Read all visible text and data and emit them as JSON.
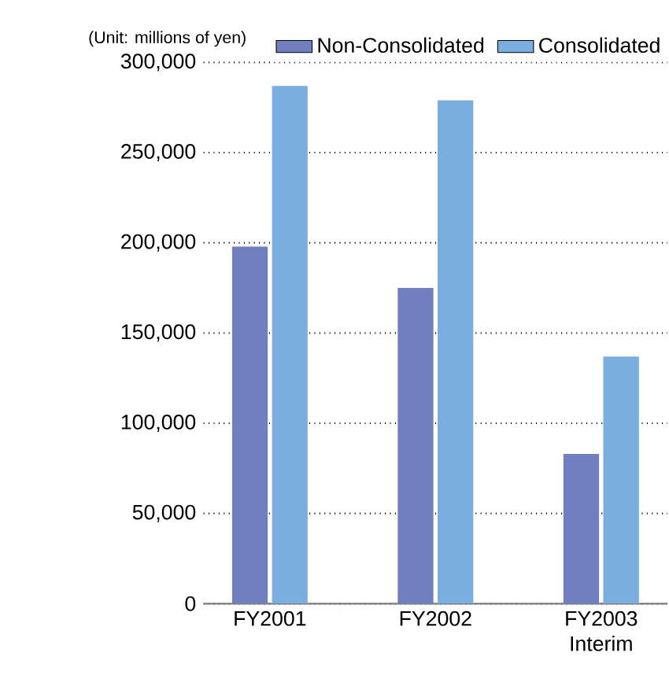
{
  "chart_data": {
    "type": "bar",
    "ylabel": "(Unit: millions of yen)",
    "categories": [
      "FY2001",
      "FY2002",
      "FY2003 Interim"
    ],
    "series": [
      {
        "name": "Non-Consolidated",
        "color": "#6f7fc0",
        "values": [
          198000,
          175000,
          83000
        ]
      },
      {
        "name": "Consolidated",
        "color": "#7aaee0",
        "values": [
          287000,
          279000,
          137000
        ]
      }
    ],
    "ylim": [
      0,
      300000
    ],
    "yticks": [
      0,
      {
        "value": 50000,
        "label": "50,000"
      },
      {
        "value": 100000,
        "label": "100,000"
      },
      {
        "value": 150000,
        "label": "150,000"
      },
      {
        "value": 200000,
        "label": "200,000"
      },
      {
        "value": 250000,
        "label": "250,000"
      },
      {
        "value": 300000,
        "label": "300,000"
      }
    ],
    "grid": "y",
    "legend": "top"
  }
}
